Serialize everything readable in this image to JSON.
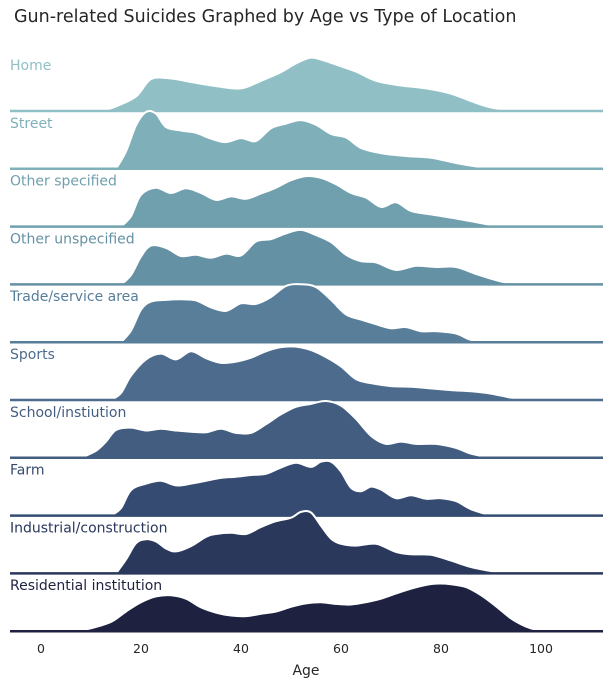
{
  "chart_data": {
    "type": "ridgeline",
    "title": "Gun-related Suicides Graphed by Age vs Type of Location",
    "xlabel": "Age",
    "ylabel": "",
    "xlim": [
      -6,
      113
    ],
    "xticks": [
      0,
      20,
      40,
      60,
      80,
      100
    ],
    "grid": false,
    "legend": "none (series names labelled on each ridge)",
    "series": [
      {
        "name": "Home",
        "color": "#90c0c5",
        "points": [
          [
            12,
            0
          ],
          [
            15,
            0.08
          ],
          [
            19,
            0.25
          ],
          [
            22,
            0.55
          ],
          [
            26,
            0.56
          ],
          [
            30,
            0.5
          ],
          [
            35,
            0.43
          ],
          [
            40,
            0.39
          ],
          [
            44,
            0.52
          ],
          [
            48,
            0.67
          ],
          [
            51,
            0.82
          ],
          [
            54,
            0.92
          ],
          [
            57,
            0.86
          ],
          [
            60,
            0.77
          ],
          [
            63,
            0.68
          ],
          [
            67,
            0.52
          ],
          [
            72,
            0.44
          ],
          [
            77,
            0.39
          ],
          [
            82,
            0.3
          ],
          [
            86,
            0.17
          ],
          [
            90,
            0.06
          ],
          [
            95,
            0
          ]
        ]
      },
      {
        "name": "Street",
        "color": "#7fb0ba",
        "points": [
          [
            15,
            0
          ],
          [
            17,
            0.3
          ],
          [
            19,
            0.75
          ],
          [
            21,
            0.98
          ],
          [
            23,
            0.95
          ],
          [
            25,
            0.72
          ],
          [
            28,
            0.66
          ],
          [
            31,
            0.62
          ],
          [
            34,
            0.52
          ],
          [
            37,
            0.46
          ],
          [
            40,
            0.53
          ],
          [
            43,
            0.48
          ],
          [
            46,
            0.7
          ],
          [
            49,
            0.78
          ],
          [
            52,
            0.84
          ],
          [
            55,
            0.76
          ],
          [
            58,
            0.6
          ],
          [
            61,
            0.54
          ],
          [
            64,
            0.36
          ],
          [
            68,
            0.27
          ],
          [
            73,
            0.22
          ],
          [
            78,
            0.19
          ],
          [
            83,
            0.1
          ],
          [
            88,
            0.03
          ],
          [
            92,
            0
          ]
        ]
      },
      {
        "name": "Other specified",
        "color": "#70a0ae",
        "points": [
          [
            16,
            0
          ],
          [
            18,
            0.18
          ],
          [
            20,
            0.55
          ],
          [
            23,
            0.67
          ],
          [
            26,
            0.58
          ],
          [
            29,
            0.66
          ],
          [
            32,
            0.58
          ],
          [
            35,
            0.46
          ],
          [
            38,
            0.52
          ],
          [
            41,
            0.48
          ],
          [
            44,
            0.57
          ],
          [
            47,
            0.67
          ],
          [
            50,
            0.8
          ],
          [
            53,
            0.87
          ],
          [
            56,
            0.84
          ],
          [
            59,
            0.73
          ],
          [
            62,
            0.58
          ],
          [
            65,
            0.5
          ],
          [
            68,
            0.34
          ],
          [
            71,
            0.42
          ],
          [
            74,
            0.27
          ],
          [
            78,
            0.21
          ],
          [
            83,
            0.14
          ],
          [
            88,
            0.06
          ],
          [
            92,
            0
          ]
        ]
      },
      {
        "name": "Other unspecified",
        "color": "#6591a4",
        "points": [
          [
            16,
            0
          ],
          [
            18,
            0.16
          ],
          [
            20,
            0.48
          ],
          [
            22,
            0.67
          ],
          [
            25,
            0.63
          ],
          [
            28,
            0.49
          ],
          [
            31,
            0.51
          ],
          [
            34,
            0.46
          ],
          [
            37,
            0.53
          ],
          [
            40,
            0.5
          ],
          [
            43,
            0.74
          ],
          [
            46,
            0.78
          ],
          [
            49,
            0.88
          ],
          [
            52,
            0.94
          ],
          [
            55,
            0.85
          ],
          [
            58,
            0.73
          ],
          [
            61,
            0.51
          ],
          [
            64,
            0.4
          ],
          [
            67,
            0.38
          ],
          [
            71,
            0.25
          ],
          [
            75,
            0.32
          ],
          [
            79,
            0.3
          ],
          [
            83,
            0.3
          ],
          [
            87,
            0.18
          ],
          [
            92,
            0.05
          ],
          [
            96,
            0
          ]
        ]
      },
      {
        "name": "Trade/service area",
        "color": "#587e9a",
        "points": [
          [
            16,
            0
          ],
          [
            18,
            0.2
          ],
          [
            20,
            0.56
          ],
          [
            22,
            0.7
          ],
          [
            25,
            0.73
          ],
          [
            28,
            0.74
          ],
          [
            31,
            0.72
          ],
          [
            34,
            0.6
          ],
          [
            37,
            0.54
          ],
          [
            40,
            0.67
          ],
          [
            43,
            0.66
          ],
          [
            46,
            0.78
          ],
          [
            49,
            0.97
          ],
          [
            52,
            1.0
          ],
          [
            55,
            0.95
          ],
          [
            58,
            0.73
          ],
          [
            61,
            0.48
          ],
          [
            64,
            0.39
          ],
          [
            67,
            0.31
          ],
          [
            70,
            0.24
          ],
          [
            73,
            0.26
          ],
          [
            76,
            0.19
          ],
          [
            79,
            0.19
          ],
          [
            83,
            0.15
          ],
          [
            86,
            0.04
          ],
          [
            90,
            0
          ]
        ]
      },
      {
        "name": "Sports",
        "color": "#4d6c8d",
        "points": [
          [
            14,
            0
          ],
          [
            16,
            0.12
          ],
          [
            18,
            0.42
          ],
          [
            21,
            0.7
          ],
          [
            24,
            0.8
          ],
          [
            27,
            0.7
          ],
          [
            30,
            0.84
          ],
          [
            33,
            0.72
          ],
          [
            36,
            0.64
          ],
          [
            39,
            0.66
          ],
          [
            42,
            0.73
          ],
          [
            45,
            0.84
          ],
          [
            48,
            0.91
          ],
          [
            51,
            0.92
          ],
          [
            54,
            0.86
          ],
          [
            57,
            0.74
          ],
          [
            60,
            0.58
          ],
          [
            63,
            0.36
          ],
          [
            66,
            0.29
          ],
          [
            70,
            0.24
          ],
          [
            74,
            0.23
          ],
          [
            78,
            0.2
          ],
          [
            82,
            0.17
          ],
          [
            86,
            0.15
          ],
          [
            90,
            0.11
          ],
          [
            94,
            0.04
          ],
          [
            97,
            0
          ]
        ]
      },
      {
        "name": "School/instiution",
        "color": "#435d80",
        "points": [
          [
            8,
            0
          ],
          [
            11,
            0.12
          ],
          [
            13,
            0.28
          ],
          [
            15,
            0.48
          ],
          [
            18,
            0.52
          ],
          [
            21,
            0.47
          ],
          [
            24,
            0.5
          ],
          [
            27,
            0.47
          ],
          [
            30,
            0.45
          ],
          [
            33,
            0.44
          ],
          [
            36,
            0.5
          ],
          [
            39,
            0.43
          ],
          [
            42,
            0.43
          ],
          [
            45,
            0.58
          ],
          [
            48,
            0.75
          ],
          [
            51,
            0.88
          ],
          [
            54,
            0.93
          ],
          [
            57,
            0.98
          ],
          [
            60,
            0.9
          ],
          [
            63,
            0.67
          ],
          [
            66,
            0.38
          ],
          [
            69,
            0.24
          ],
          [
            72,
            0.28
          ],
          [
            75,
            0.24
          ],
          [
            79,
            0.24
          ],
          [
            83,
            0.17
          ],
          [
            86,
            0.07
          ],
          [
            90,
            0
          ]
        ]
      },
      {
        "name": "Farm",
        "color": "#354b71",
        "points": [
          [
            14,
            0
          ],
          [
            16,
            0.13
          ],
          [
            18,
            0.44
          ],
          [
            21,
            0.55
          ],
          [
            24,
            0.6
          ],
          [
            27,
            0.52
          ],
          [
            30,
            0.55
          ],
          [
            33,
            0.6
          ],
          [
            36,
            0.65
          ],
          [
            39,
            0.67
          ],
          [
            42,
            0.7
          ],
          [
            45,
            0.72
          ],
          [
            48,
            0.83
          ],
          [
            51,
            0.91
          ],
          [
            54,
            0.84
          ],
          [
            56,
            0.93
          ],
          [
            58,
            0.93
          ],
          [
            60,
            0.76
          ],
          [
            62,
            0.48
          ],
          [
            64,
            0.42
          ],
          [
            66,
            0.5
          ],
          [
            68,
            0.45
          ],
          [
            71,
            0.3
          ],
          [
            74,
            0.35
          ],
          [
            77,
            0.29
          ],
          [
            80,
            0.3
          ],
          [
            83,
            0.25
          ],
          [
            86,
            0.11
          ],
          [
            90,
            0
          ]
        ]
      },
      {
        "name": "Industrial/construction",
        "color": "#2a385c",
        "points": [
          [
            15,
            0
          ],
          [
            17,
            0.24
          ],
          [
            19,
            0.52
          ],
          [
            21,
            0.59
          ],
          [
            23,
            0.55
          ],
          [
            25,
            0.43
          ],
          [
            27,
            0.38
          ],
          [
            30,
            0.47
          ],
          [
            33,
            0.63
          ],
          [
            35,
            0.68
          ],
          [
            38,
            0.7
          ],
          [
            41,
            0.68
          ],
          [
            44,
            0.8
          ],
          [
            47,
            0.9
          ],
          [
            50,
            0.96
          ],
          [
            52,
            1.06
          ],
          [
            54,
            1.05
          ],
          [
            56,
            0.82
          ],
          [
            58,
            0.6
          ],
          [
            60,
            0.51
          ],
          [
            63,
            0.48
          ],
          [
            67,
            0.51
          ],
          [
            71,
            0.37
          ],
          [
            74,
            0.33
          ],
          [
            78,
            0.32
          ],
          [
            82,
            0.22
          ],
          [
            86,
            0.11
          ],
          [
            90,
            0.04
          ],
          [
            93,
            0
          ]
        ]
      },
      {
        "name": "Residential institution",
        "color": "#1e2240",
        "points": [
          [
            7,
            0
          ],
          [
            10,
            0.05
          ],
          [
            14,
            0.16
          ],
          [
            17,
            0.34
          ],
          [
            20,
            0.5
          ],
          [
            23,
            0.6
          ],
          [
            26,
            0.62
          ],
          [
            29,
            0.56
          ],
          [
            32,
            0.41
          ],
          [
            35,
            0.32
          ],
          [
            38,
            0.27
          ],
          [
            41,
            0.26
          ],
          [
            44,
            0.3
          ],
          [
            47,
            0.34
          ],
          [
            50,
            0.42
          ],
          [
            53,
            0.48
          ],
          [
            56,
            0.5
          ],
          [
            59,
            0.47
          ],
          [
            62,
            0.46
          ],
          [
            65,
            0.5
          ],
          [
            68,
            0.56
          ],
          [
            72,
            0.68
          ],
          [
            76,
            0.78
          ],
          [
            79,
            0.82
          ],
          [
            82,
            0.81
          ],
          [
            85,
            0.76
          ],
          [
            88,
            0.62
          ],
          [
            91,
            0.43
          ],
          [
            94,
            0.22
          ],
          [
            97,
            0.08
          ],
          [
            100,
            0
          ]
        ]
      }
    ]
  }
}
